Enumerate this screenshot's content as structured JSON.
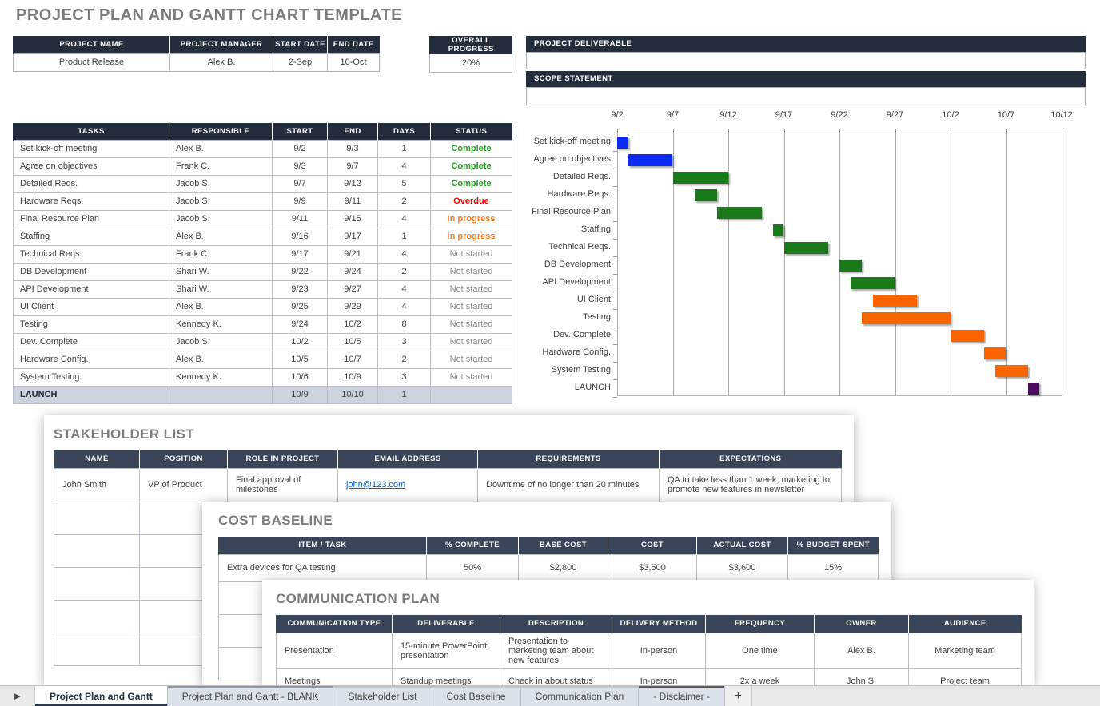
{
  "page_title": "PROJECT PLAN AND GANTT CHART TEMPLATE",
  "colors": {
    "header_navy": "#242d3c",
    "card_header_navy": "#3b4559",
    "launch_row_bg": "#cdd3de",
    "status": {
      "Complete": "#1fa11f",
      "Overdue": "#ff0000",
      "In progress": "#ff7c1f",
      "Not started": "#8a8a8a"
    },
    "bar_blue": "#0b2bf2",
    "bar_green": "#1a7a1a",
    "bar_orange": "#fb6500",
    "bar_purple": "#4c0b5f",
    "link_blue": "#0563c1",
    "active_tab_accent": "#2b3b5c"
  },
  "project_info": {
    "name_label": "PROJECT NAME",
    "name": "Product Release",
    "manager_label": "PROJECT MANAGER",
    "manager": "Alex B.",
    "start_label": "START DATE",
    "start": "2-Sep",
    "end_label": "END DATE",
    "end": "10-Oct"
  },
  "overall_progress": {
    "label": "OVERALL PROGRESS",
    "value": "20%"
  },
  "deliverable": {
    "label": "PROJECT DELIVERABLE",
    "value": ""
  },
  "scope": {
    "label": "SCOPE STATEMENT",
    "value": ""
  },
  "tasks_table": {
    "headers": [
      "TASKS",
      "RESPONSIBLE",
      "START",
      "END",
      "DAYS",
      "STATUS"
    ],
    "rows": [
      {
        "task": "Set kick-off meeting",
        "responsible": "Alex B.",
        "start": "9/2",
        "end": "9/3",
        "days": "1",
        "status": "Complete"
      },
      {
        "task": "Agree on objectives",
        "responsible": "Frank C.",
        "start": "9/3",
        "end": "9/7",
        "days": "4",
        "status": "Complete"
      },
      {
        "task": "Detailed Reqs.",
        "responsible": "Jacob S.",
        "start": "9/7",
        "end": "9/12",
        "days": "5",
        "status": "Complete"
      },
      {
        "task": "Hardware Reqs.",
        "responsible": "Jacob S.",
        "start": "9/9",
        "end": "9/11",
        "days": "2",
        "status": "Overdue"
      },
      {
        "task": "Final Resource Plan",
        "responsible": "Jacob S.",
        "start": "9/11",
        "end": "9/15",
        "days": "4",
        "status": "In progress"
      },
      {
        "task": "Staffing",
        "responsible": "Alex B.",
        "start": "9/16",
        "end": "9/17",
        "days": "1",
        "status": "In progress"
      },
      {
        "task": "Technical Reqs.",
        "responsible": "Frank C.",
        "start": "9/17",
        "end": "9/21",
        "days": "4",
        "status": "Not started"
      },
      {
        "task": "DB Development",
        "responsible": "Shari W.",
        "start": "9/22",
        "end": "9/24",
        "days": "2",
        "status": "Not started"
      },
      {
        "task": "API Development",
        "responsible": "Shari W.",
        "start": "9/23",
        "end": "9/27",
        "days": "4",
        "status": "Not started"
      },
      {
        "task": "UI Client",
        "responsible": "Alex B.",
        "start": "9/25",
        "end": "9/29",
        "days": "4",
        "status": "Not started"
      },
      {
        "task": "Testing",
        "responsible": "Kennedy K.",
        "start": "9/24",
        "end": "10/2",
        "days": "8",
        "status": "Not started"
      },
      {
        "task": "Dev. Complete",
        "responsible": "Jacob S.",
        "start": "10/2",
        "end": "10/5",
        "days": "3",
        "status": "Not started"
      },
      {
        "task": "Hardware Config.",
        "responsible": "Alex B.",
        "start": "10/5",
        "end": "10/7",
        "days": "2",
        "status": "Not started"
      },
      {
        "task": "System Testing",
        "responsible": "Kennedy K.",
        "start": "10/6",
        "end": "10/9",
        "days": "3",
        "status": "Not started"
      },
      {
        "task": "LAUNCH",
        "responsible": "",
        "start": "10/9",
        "end": "10/10",
        "days": "1",
        "status": "",
        "launch": true
      }
    ]
  },
  "chart_data": {
    "type": "bar",
    "subtype": "gantt",
    "x_ticks": [
      "9/2",
      "9/7",
      "9/12",
      "9/17",
      "9/22",
      "9/27",
      "10/2",
      "10/7",
      "10/12"
    ],
    "timeline_days": 40,
    "grid": true,
    "tasks": [
      {
        "label": "Set kick-off meeting",
        "start": "9/2",
        "end": "9/3",
        "start_day": 0,
        "end_day": 1,
        "color": "#0b2bf2"
      },
      {
        "label": "Agree on objectives",
        "start": "9/3",
        "end": "9/7",
        "start_day": 1,
        "end_day": 5,
        "color": "#0b2bf2"
      },
      {
        "label": "Detailed Reqs.",
        "start": "9/7",
        "end": "9/12",
        "start_day": 5,
        "end_day": 10,
        "color": "#1a7a1a"
      },
      {
        "label": "Hardware Reqs.",
        "start": "9/9",
        "end": "9/11",
        "start_day": 7,
        "end_day": 9,
        "color": "#1a7a1a"
      },
      {
        "label": "Final Resource Plan",
        "start": "9/11",
        "end": "9/15",
        "start_day": 9,
        "end_day": 13,
        "color": "#1a7a1a"
      },
      {
        "label": "Staffing",
        "start": "9/16",
        "end": "9/17",
        "start_day": 14,
        "end_day": 15,
        "color": "#1a7a1a"
      },
      {
        "label": "Technical Reqs.",
        "start": "9/17",
        "end": "9/21",
        "start_day": 15,
        "end_day": 19,
        "color": "#1a7a1a"
      },
      {
        "label": "DB Development",
        "start": "9/22",
        "end": "9/24",
        "start_day": 20,
        "end_day": 22,
        "color": "#1a7a1a"
      },
      {
        "label": "API Development",
        "start": "9/23",
        "end": "9/27",
        "start_day": 21,
        "end_day": 25,
        "color": "#1a7a1a"
      },
      {
        "label": "UI Client",
        "start": "9/25",
        "end": "9/29",
        "start_day": 23,
        "end_day": 27,
        "color": "#fb6500"
      },
      {
        "label": "Testing",
        "start": "9/24",
        "end": "10/2",
        "start_day": 22,
        "end_day": 30,
        "color": "#fb6500"
      },
      {
        "label": "Dev. Complete",
        "start": "10/2",
        "end": "10/5",
        "start_day": 30,
        "end_day": 33,
        "color": "#fb6500"
      },
      {
        "label": "Hardware Config.",
        "start": "10/5",
        "end": "10/7",
        "start_day": 33,
        "end_day": 35,
        "color": "#fb6500"
      },
      {
        "label": "System Testing",
        "start": "10/6",
        "end": "10/9",
        "start_day": 34,
        "end_day": 37,
        "color": "#fb6500"
      },
      {
        "label": "LAUNCH",
        "start": "10/9",
        "end": "10/10",
        "start_day": 37,
        "end_day": 38,
        "color": "#4c0b5f"
      }
    ]
  },
  "stakeholder": {
    "title": "STAKEHOLDER LIST",
    "headers": [
      "NAME",
      "POSITION",
      "ROLE IN PROJECT",
      "EMAIL ADDRESS",
      "REQUIREMENTS",
      "EXPECTATIONS"
    ],
    "rows": [
      [
        "John Smith",
        "VP of Product",
        "Final approval of milestones",
        "john@123.com",
        "Downtime of no longer than 20 minutes",
        "QA to take less than 1 week, marketing to promote new features in newsletter"
      ]
    ],
    "link_columns": [
      3
    ],
    "empty_row_count": 5
  },
  "cost_baseline": {
    "title": "COST BASELINE",
    "headers": [
      "ITEM / TASK",
      "% COMPLETE",
      "BASE COST",
      "COST",
      "ACTUAL COST",
      "% BUDGET SPENT"
    ],
    "rows": [
      [
        "Extra devices for QA testing",
        "50%",
        "$2,800",
        "$3,500",
        "$3,600",
        "15%"
      ]
    ],
    "empty_row_count": 3
  },
  "communication_plan": {
    "title": "COMMUNICATION PLAN",
    "headers": [
      "COMMUNICATION TYPE",
      "DELIVERABLE",
      "DESCRIPTION",
      "DELIVERY METHOD",
      "FREQUENCY",
      "OWNER",
      "AUDIENCE"
    ],
    "rows": [
      [
        "Presentation",
        "15-minute PowerPoint presentation",
        "Presentation to marketing team about new features",
        "In-person",
        "One time",
        "Alex B.",
        "Marketing team"
      ],
      [
        "Meetings",
        "Standup meetings",
        "Check in about status",
        "In-person",
        "2x a week",
        "John S.",
        "Project team"
      ]
    ]
  },
  "tab_bar": {
    "tabs": [
      {
        "label": "Project Plan and Gantt",
        "active": true,
        "accent": "#2b3b5c"
      },
      {
        "label": "Project Plan and Gantt - BLANK",
        "active": false,
        "accent": "#8d97a8"
      },
      {
        "label": "Stakeholder List",
        "active": false,
        "accent": "#bdc7d4"
      },
      {
        "label": "Cost Baseline",
        "active": false,
        "accent": "#bdc7d4"
      },
      {
        "label": "Communication Plan",
        "active": false,
        "accent": "#bdc7d4"
      },
      {
        "label": "- Disclaimer -",
        "active": false,
        "accent": "#5a5a5a"
      }
    ],
    "add_label": "+",
    "scroll_arrow": "▶"
  }
}
